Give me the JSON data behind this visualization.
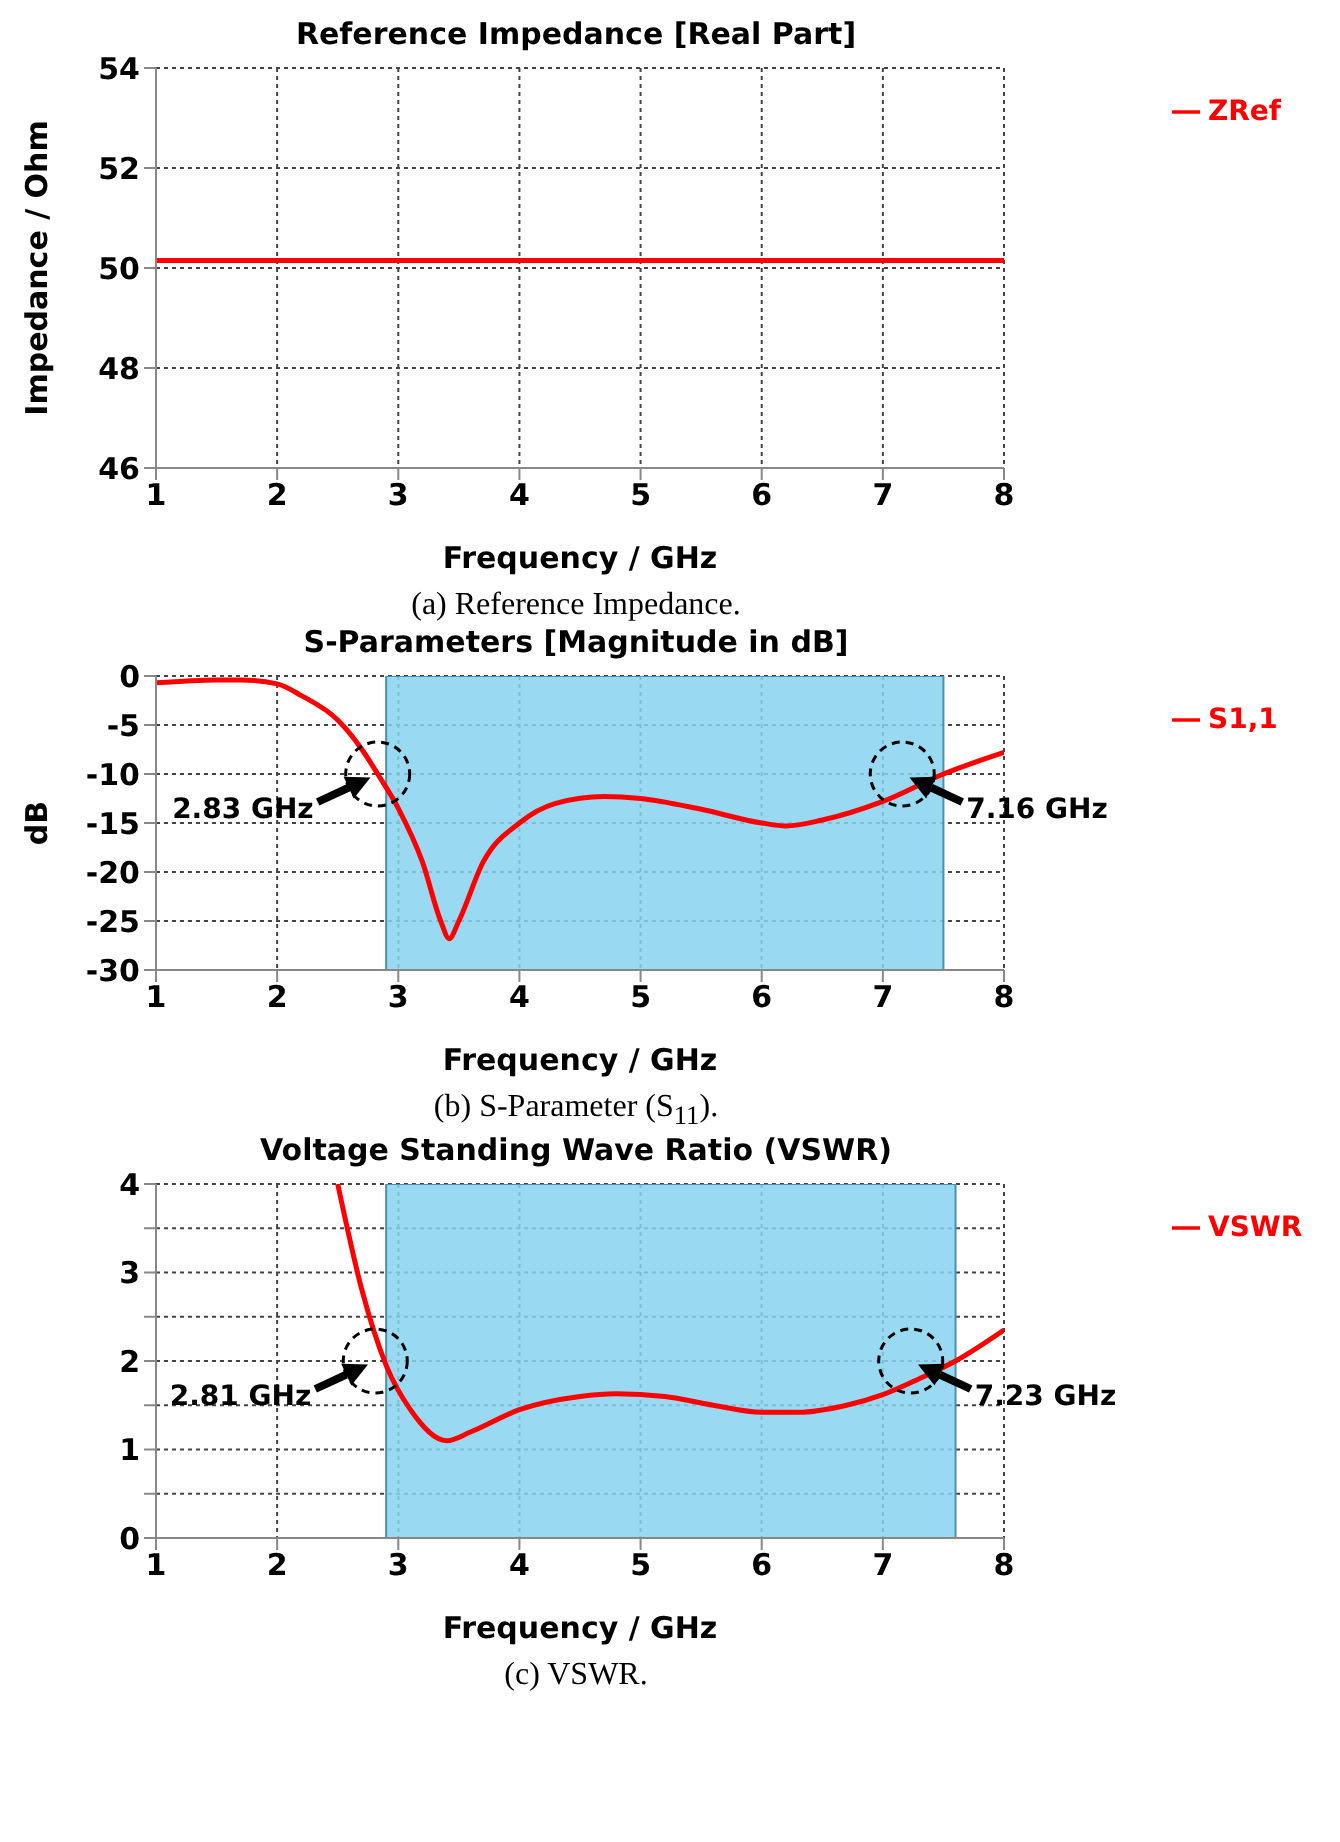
{
  "chart_data": [
    {
      "type": "line",
      "title": "Reference Impedance [Real Part]",
      "xlabel": "Frequency / GHz",
      "ylabel": "Impedance / Ohm",
      "x": [
        1,
        8
      ],
      "series": [
        {
          "name": "ZRef",
          "color": "#ff0000",
          "values": [
            50.15,
            50.15
          ]
        }
      ],
      "xlim": [
        1,
        8
      ],
      "xticks": [
        1,
        2,
        3,
        4,
        5,
        6,
        7,
        8
      ],
      "ylim": [
        46,
        54
      ],
      "yticks": [
        46,
        48,
        50,
        52,
        54
      ],
      "grid": true,
      "legend": "top right",
      "marker": "none",
      "line_style": "solid",
      "annotations": [
        "(a) Reference Impedance."
      ]
    },
    {
      "type": "line",
      "title": "S-Parameters [Magnitude in dB]",
      "xlabel": "Frequency / GHz",
      "ylabel": "dB",
      "x": [
        1,
        1.5,
        1.7,
        2,
        2.2,
        2.5,
        2.7,
        2.83,
        3,
        3.2,
        3.35,
        3.42,
        3.5,
        3.7,
        4,
        4.3,
        4.7,
        5,
        5.5,
        6,
        6.2,
        6.5,
        7,
        7.5,
        8
      ],
      "series": [
        {
          "name": "S1,1",
          "color": "#ff0000",
          "values": [
            -0.7,
            -0.4,
            -0.4,
            -0.8,
            -2,
            -4.5,
            -7.5,
            -10,
            -13.5,
            -19,
            -25,
            -26.8,
            -25,
            -19,
            -15,
            -13,
            -12.3,
            -12.5,
            -13.6,
            -15,
            -15.3,
            -14.7,
            -12.8,
            -10,
            -7.8
          ]
        }
      ],
      "xlim": [
        1,
        8
      ],
      "xticks": [
        1,
        2,
        3,
        4,
        5,
        6,
        7,
        8
      ],
      "ylim": [
        -30,
        0
      ],
      "yticks": [
        -30,
        -25,
        -20,
        -15,
        -10,
        -5,
        0
      ],
      "grid": true,
      "legend": "top right",
      "marker": "none",
      "line_style": "solid",
      "bands": [
        {
          "axis": "x",
          "from": 2.9,
          "to": 7.5,
          "color": "#87d3f0"
        }
      ],
      "annotations": [
        {
          "text": "2.83 GHz",
          "x": 2.83,
          "y": -10
        },
        {
          "text": "7.16 GHz",
          "x": 7.16,
          "y": -10
        },
        "(b) S-Parameter (S$_{11}$)."
      ]
    },
    {
      "type": "line",
      "title": "Voltage Standing Wave Ratio (VSWR)",
      "xlabel": "Frequency / GHz",
      "x": [
        2.5,
        2.7,
        2.9,
        3.1,
        3.4,
        3.6,
        4,
        4.5,
        4.8,
        5.2,
        5.6,
        6,
        6.3,
        6.7,
        7,
        7.3,
        7.6,
        8
      ],
      "series": [
        {
          "name": "VSWR",
          "color": "#ff0000",
          "values": [
            4,
            2.8,
            1.95,
            1.45,
            1.1,
            1.2,
            1.45,
            1.6,
            1.63,
            1.6,
            1.5,
            1.42,
            1.42,
            1.5,
            1.62,
            1.8,
            2,
            2.35
          ]
        }
      ],
      "xlim": [
        1,
        8
      ],
      "xticks": [
        1,
        2,
        3,
        4,
        5,
        6,
        7,
        8
      ],
      "ylim": [
        0,
        4
      ],
      "yticks": [
        0,
        {
          "value": 0.5,
          "label": null
        },
        1,
        {
          "value": 1.5,
          "label": null
        },
        2,
        {
          "value": 2.5,
          "label": null
        },
        3,
        {
          "value": 3.5,
          "label": null
        },
        4
      ],
      "grid": true,
      "legend": "top right",
      "marker": "none",
      "line_style": "solid",
      "bands": [
        {
          "axis": "x",
          "from": 2.9,
          "to": 7.6,
          "color": "#87d3f0"
        }
      ],
      "annotations": [
        {
          "text": "2.81 GHz",
          "x": 2.81,
          "y": 2
        },
        {
          "text": "7.23 GHz",
          "x": 7.23,
          "y": 2
        },
        "(c) VSWR."
      ]
    }
  ]
}
